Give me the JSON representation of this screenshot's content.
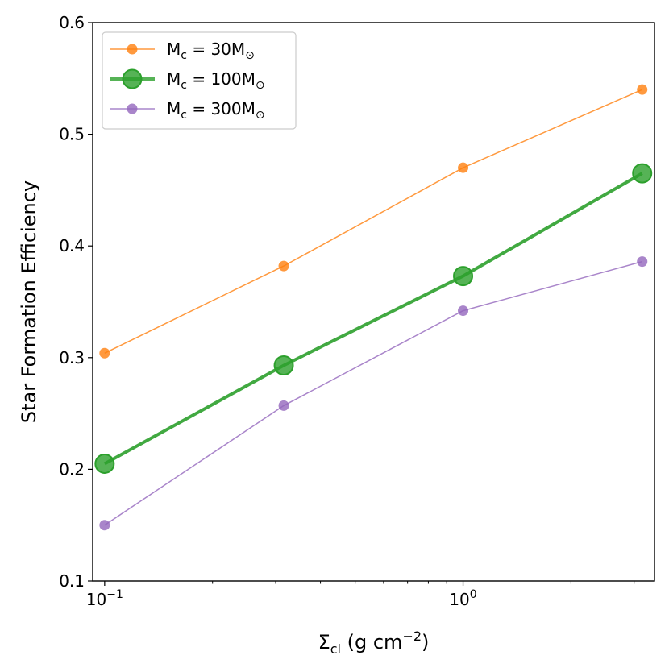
{
  "chart_data": {
    "type": "line",
    "xscale": "log",
    "x": [
      0.1,
      0.316,
      1.0,
      3.16
    ],
    "xlim": [
      0.0926,
      3.42
    ],
    "ylim": [
      0.1,
      0.6
    ],
    "grid": false,
    "xlabel": "Σ",
    "xlabel_sub": "cl",
    "xlabel_units": " (g cm",
    "xlabel_sup": "−2",
    "xlabel_end": ")",
    "ylabel": "Star Formation Efficiency",
    "x_ticks": [
      {
        "value": 0.1,
        "base": "10",
        "exp": "−1"
      },
      {
        "value": 1.0,
        "base": "10",
        "exp": "0"
      }
    ],
    "y_ticks": [
      {
        "value": 0.1,
        "label": "0.1"
      },
      {
        "value": 0.2,
        "label": "0.2"
      },
      {
        "value": 0.3,
        "label": "0.3"
      },
      {
        "value": 0.4,
        "label": "0.4"
      },
      {
        "value": 0.5,
        "label": "0.5"
      },
      {
        "value": 0.6,
        "label": "0.6"
      }
    ],
    "legend_location": "top-left",
    "series": [
      {
        "name": "M_c = 30M_⊙",
        "label_main": "M",
        "label_sub": "c",
        "label_mid": " = 30M",
        "label_sun": "⊙",
        "color": "#ff7f0e",
        "style": "thin",
        "values": [
          0.304,
          0.382,
          0.47,
          0.54
        ]
      },
      {
        "name": "M_c = 100M_⊙",
        "label_main": "M",
        "label_sub": "c",
        "label_mid": " = 100M",
        "label_sun": "⊙",
        "color": "#2ca02c",
        "style": "thick",
        "values": [
          0.205,
          0.293,
          0.373,
          0.465
        ]
      },
      {
        "name": "M_c = 300M_⊙",
        "label_main": "M",
        "label_sub": "c",
        "label_mid": " = 300M",
        "label_sun": "⊙",
        "color": "#9467bd",
        "style": "thin",
        "values": [
          0.15,
          0.257,
          0.342,
          0.386
        ]
      }
    ]
  }
}
